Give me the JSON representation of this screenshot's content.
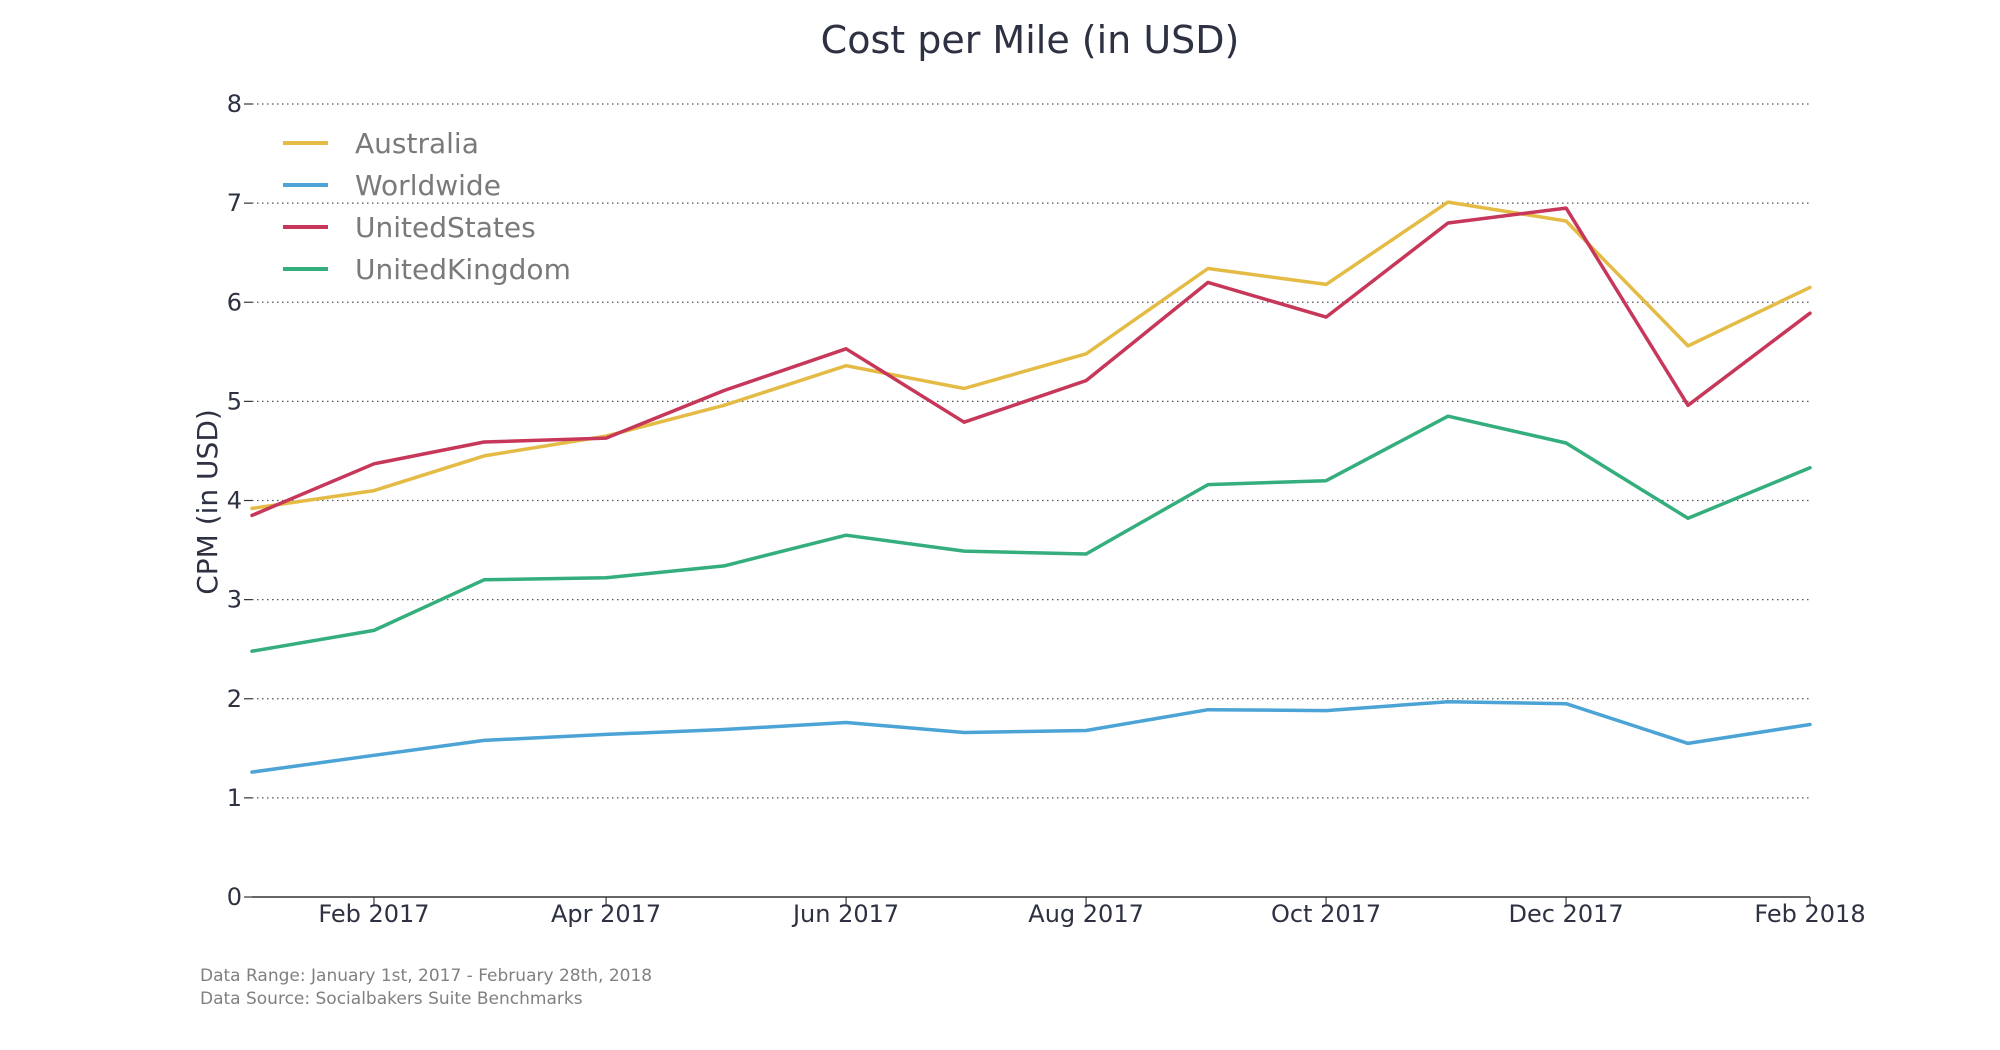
{
  "chart_data": {
    "type": "line",
    "title": "Cost per Mile (in USD)",
    "xlabel": "",
    "ylabel": "CPM (in USD)",
    "ylim": [
      0,
      8
    ],
    "yticks": [
      0,
      1,
      2,
      3,
      4,
      5,
      6,
      7,
      8
    ],
    "x": [
      "2017-01-01",
      "2017-02-01",
      "2017-03-01",
      "2017-04-01",
      "2017-05-01",
      "2017-06-01",
      "2017-07-01",
      "2017-08-01",
      "2017-09-01",
      "2017-10-01",
      "2017-11-01",
      "2017-12-01",
      "2018-01-01",
      "2018-02-01"
    ],
    "xticks": [
      {
        "x": "2017-02-01",
        "label": "Feb 2017"
      },
      {
        "x": "2017-04-01",
        "label": "Apr 2017"
      },
      {
        "x": "2017-06-01",
        "label": "Jun 2017"
      },
      {
        "x": "2017-08-01",
        "label": "Aug 2017"
      },
      {
        "x": "2017-10-01",
        "label": "Oct 2017"
      },
      {
        "x": "2017-12-01",
        "label": "Dec 2017"
      },
      {
        "x": "2018-02-01",
        "label": "Feb 2018"
      }
    ],
    "grid": "horizontal-dotted",
    "legend_position": "top-left",
    "series": [
      {
        "name": "Australia",
        "color": "#e3bb45",
        "values": [
          3.92,
          4.1,
          4.45,
          4.65,
          4.96,
          5.36,
          5.13,
          5.48,
          6.34,
          6.18,
          7.01,
          6.82,
          5.56,
          6.15
        ]
      },
      {
        "name": "Worldwide",
        "color": "#4ba3d6",
        "values": [
          1.26,
          1.43,
          1.58,
          1.64,
          1.69,
          1.76,
          1.66,
          1.68,
          1.89,
          1.88,
          1.97,
          1.95,
          1.55,
          1.74
        ]
      },
      {
        "name": "UnitedStates",
        "color": "#c7375a",
        "values": [
          3.85,
          4.37,
          4.59,
          4.63,
          5.11,
          5.53,
          4.79,
          5.21,
          6.2,
          5.85,
          6.8,
          6.95,
          4.96,
          5.89
        ]
      },
      {
        "name": "UnitedKingdom",
        "color": "#33ae7c",
        "values": [
          2.48,
          2.69,
          3.2,
          3.22,
          3.34,
          3.65,
          3.49,
          3.46,
          4.16,
          4.2,
          4.85,
          4.58,
          3.82,
          4.33
        ]
      }
    ]
  },
  "footnotes": {
    "range": "Data Range: January 1st, 2017 - February 28th, 2018",
    "source": "Data Source: Socialbakers Suite Benchmarks"
  }
}
